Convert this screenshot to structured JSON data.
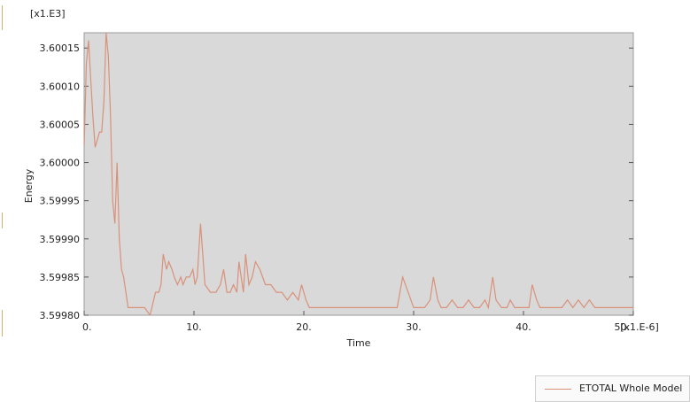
{
  "chart_data": {
    "type": "line",
    "xlabel": "Time",
    "ylabel": "Energy",
    "x_multiplier": "[x1.E-6]",
    "y_multiplier": "[x1.E3]",
    "xlim": [
      0,
      50
    ],
    "ylim": [
      3.5998,
      3.60017
    ],
    "x_ticks": [
      "0.",
      "10.",
      "20.",
      "30.",
      "40.",
      "50."
    ],
    "y_ticks": [
      "3.59980",
      "3.59985",
      "3.59990",
      "3.59995",
      "3.60000",
      "3.60005",
      "3.60010",
      "3.60015"
    ],
    "legend": "bottom-right",
    "grid": false,
    "plot_background": "#d9d9d9",
    "series": [
      {
        "name": "ETOTAL Whole Model",
        "color": "#d9917a",
        "x": [
          0,
          0.2,
          0.4,
          0.6,
          0.8,
          1.0,
          1.2,
          1.4,
          1.6,
          1.8,
          2.0,
          2.2,
          2.4,
          2.6,
          2.8,
          3.0,
          3.2,
          3.4,
          3.6,
          3.8,
          4.0,
          4.3,
          4.6,
          5.0,
          5.5,
          6.0,
          6.5,
          6.8,
          7.0,
          7.2,
          7.5,
          7.7,
          8.0,
          8.2,
          8.5,
          8.8,
          9.0,
          9.3,
          9.6,
          9.9,
          10.1,
          10.3,
          10.6,
          11.0,
          11.5,
          12.0,
          12.4,
          12.7,
          13.0,
          13.3,
          13.6,
          13.9,
          14.1,
          14.3,
          14.5,
          14.7,
          15.0,
          15.3,
          15.6,
          16.0,
          16.5,
          17.0,
          17.5,
          18.0,
          18.5,
          19.0,
          19.5,
          19.8,
          20.2,
          20.5,
          21.0,
          22.0,
          23.0,
          24.0,
          25.0,
          26.0,
          27.0,
          28.0,
          28.5,
          29.0,
          29.5,
          30.0,
          30.5,
          31.0,
          31.5,
          31.8,
          32.2,
          32.5,
          33.0,
          33.5,
          34.0,
          34.5,
          35.0,
          35.5,
          36.0,
          36.5,
          36.8,
          37.2,
          37.5,
          38.0,
          38.5,
          38.8,
          39.2,
          39.5,
          40.0,
          40.5,
          40.8,
          41.2,
          41.5,
          42.0,
          43.0,
          43.5,
          44.0,
          44.5,
          45.0,
          45.5,
          46.0,
          46.5,
          47.0,
          48.0,
          49.0,
          49.5,
          50.0
        ],
        "y": [
          3.60002,
          3.60013,
          3.60016,
          3.60011,
          3.60006,
          3.60002,
          3.60003,
          3.60004,
          3.60004,
          3.60008,
          3.60017,
          3.60014,
          3.60006,
          3.59995,
          3.59992,
          3.6,
          3.5999,
          3.59986,
          3.59985,
          3.59983,
          3.59981,
          3.59981,
          3.59981,
          3.59981,
          3.59981,
          3.5998,
          3.59983,
          3.59983,
          3.59984,
          3.59988,
          3.59986,
          3.59987,
          3.59986,
          3.59985,
          3.59984,
          3.59985,
          3.59984,
          3.59985,
          3.59985,
          3.59986,
          3.59984,
          3.59985,
          3.59992,
          3.59984,
          3.59983,
          3.59983,
          3.59984,
          3.59986,
          3.59983,
          3.59983,
          3.59984,
          3.59983,
          3.59987,
          3.59985,
          3.59983,
          3.59988,
          3.59984,
          3.59985,
          3.59987,
          3.59986,
          3.59984,
          3.59984,
          3.59983,
          3.59983,
          3.59982,
          3.59983,
          3.59982,
          3.59984,
          3.59982,
          3.59981,
          3.59981,
          3.59981,
          3.59981,
          3.59981,
          3.59981,
          3.59981,
          3.59981,
          3.59981,
          3.59981,
          3.59985,
          3.59983,
          3.59981,
          3.59981,
          3.59981,
          3.59982,
          3.59985,
          3.59982,
          3.59981,
          3.59981,
          3.59982,
          3.59981,
          3.59981,
          3.59982,
          3.59981,
          3.59981,
          3.59982,
          3.59981,
          3.59985,
          3.59982,
          3.59981,
          3.59981,
          3.59982,
          3.59981,
          3.59981,
          3.59981,
          3.59981,
          3.59984,
          3.59982,
          3.59981,
          3.59981,
          3.59981,
          3.59981,
          3.59982,
          3.59981,
          3.59982,
          3.59981,
          3.59982,
          3.59981,
          3.59981,
          3.59981,
          3.59981,
          3.59981,
          3.59981
        ]
      }
    ]
  }
}
